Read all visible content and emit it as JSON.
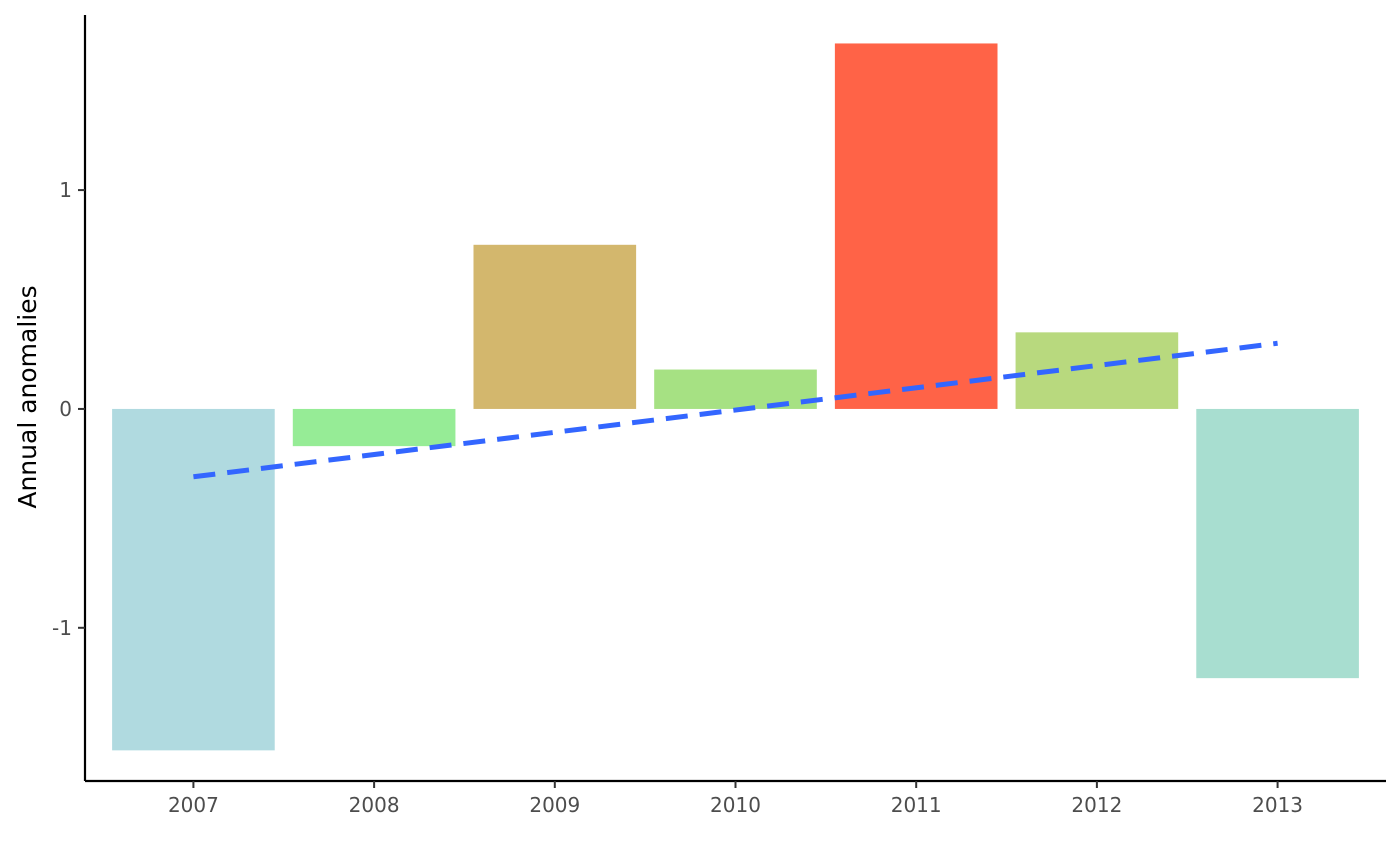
{
  "chart_data": {
    "type": "bar",
    "title": "",
    "xlabel": "",
    "ylabel": "Annual anomalies",
    "categories": [
      "2007",
      "2008",
      "2009",
      "2010",
      "2011",
      "2012",
      "2013"
    ],
    "values": [
      -1.56,
      -0.17,
      0.75,
      0.18,
      1.67,
      0.35,
      -1.23
    ],
    "bar_colors": [
      "#B0DAE0",
      "#96EC96",
      "#D3B76D",
      "#A6E183",
      "#FF6347",
      "#B8D97E",
      "#A8DED0"
    ],
    "ylim": [
      -1.7,
      1.8
    ],
    "yticks": [
      -1,
      0,
      1
    ],
    "ytick_labels": [
      "-1",
      "0",
      "1"
    ],
    "grid": false,
    "legend": "none",
    "trend_line": {
      "style": "dashed",
      "color": "#3366FF",
      "x": [
        "2007",
        "2013"
      ],
      "y": [
        -0.31,
        0.3
      ]
    }
  }
}
